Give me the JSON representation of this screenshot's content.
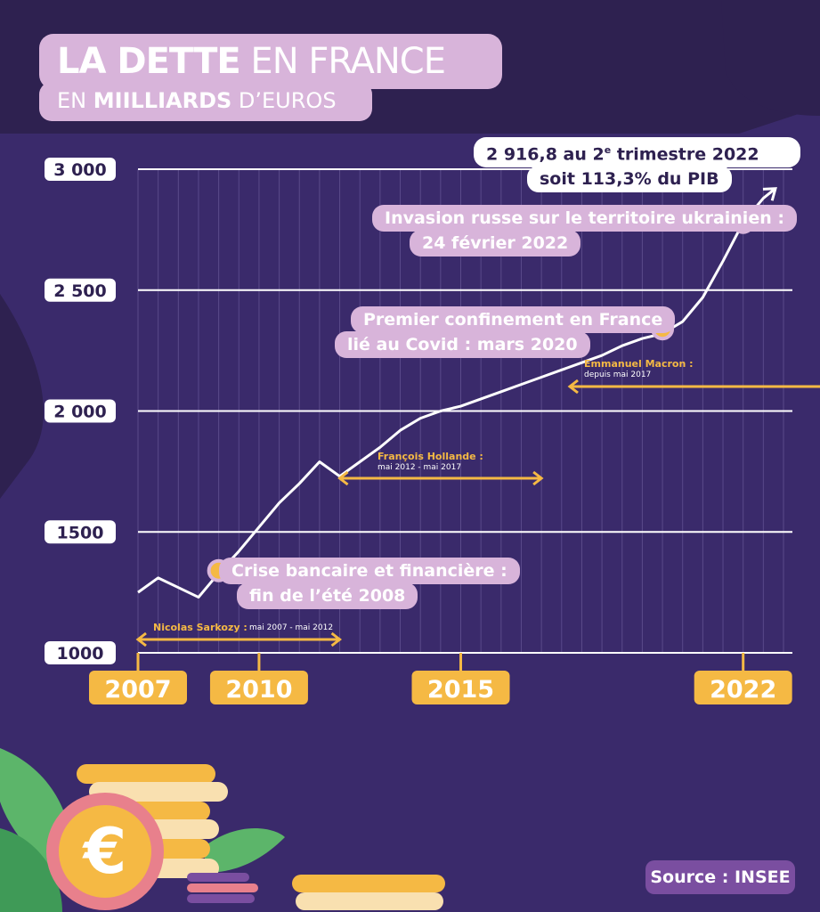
{
  "title": {
    "part1": "LA DETTE",
    "part2": " EN FRANCE"
  },
  "subtitle": {
    "part1": "EN ",
    "part2": "MIILLIARDS",
    "part3": " D’EUROS"
  },
  "colors": {
    "background": "#2e2150",
    "panel": "#3a2a6b",
    "accent_pink": "#d8b4da",
    "accent_yellow": "#f5b944",
    "line": "#ffffff"
  },
  "chart_data": {
    "type": "line",
    "title": "LA DETTE EN FRANCE",
    "ylabel": "EN MIILLIARDS D’EUROS",
    "y_ticks": [
      "1000",
      "1500",
      "2 000",
      "2 500",
      "3 000"
    ],
    "y_tick_values": [
      1000,
      1500,
      2000,
      2500,
      3000
    ],
    "x_ticks": [
      "2007",
      "2010",
      "2015",
      "2022"
    ],
    "x_tick_values": [
      2007,
      2010,
      2015,
      2022
    ],
    "xlim": [
      2007,
      2023
    ],
    "ylim": [
      1000,
      3000
    ],
    "series": [
      {
        "x": [
          2007.0,
          2007.5,
          2008.0,
          2008.5,
          2009.0,
          2009.5,
          2010.0,
          2010.5,
          2011.0,
          2011.5,
          2012.0,
          2012.5,
          2013.0,
          2013.5,
          2014.0,
          2014.5,
          2015.0,
          2015.5,
          2016.0,
          2016.5,
          2017.0,
          2017.5,
          2018.0,
          2018.5,
          2019.0,
          2019.5,
          2020.0,
          2020.5,
          2021.0,
          2021.5,
          2022.0,
          2022.5,
          2022.8
        ],
        "y": [
          1250,
          1310,
          1270,
          1230,
          1330,
          1420,
          1520,
          1620,
          1700,
          1790,
          1730,
          1790,
          1850,
          1920,
          1970,
          2000,
          2020,
          2050,
          2080,
          2110,
          2140,
          2170,
          2200,
          2230,
          2270,
          2300,
          2320,
          2370,
          2470,
          2620,
          2780,
          2880,
          2920
        ]
      }
    ],
    "annotations": [
      {
        "x": 2022.0,
        "y": 2780,
        "line1": "Invasion russe sur le territoire ukrainien :",
        "line2": "24 février 2022"
      },
      {
        "x": 2020.0,
        "y": 2340,
        "line1": "Premier confinement en France",
        "line2": "lié au Covid : mars 2020"
      },
      {
        "x": 2009.0,
        "y": 1340,
        "line1": "Crise bancaire et financière :",
        "line2": "fin de l’été 2008"
      }
    ],
    "top_label": {
      "value": "2 916,8",
      "text1": " au 2",
      "sup": "e",
      "text2": " trimestre 2022",
      "text3": "soit ",
      "pct": "113,3%",
      "text4": " du PIB"
    },
    "presidents": [
      {
        "name": "Nicolas Sarkozy :",
        "dates": " mai 2007 - mai 2012",
        "from": 2007,
        "to": 2012
      },
      {
        "name": "François Hollande :",
        "dates": "mai 2012 - mai 2017",
        "from": 2012,
        "to": 2017
      },
      {
        "name": "Emmanuel Macron :",
        "dates": "depuis mai 2017",
        "from": 2017,
        "to": 2023
      }
    ]
  },
  "source": "Source : INSEE"
}
